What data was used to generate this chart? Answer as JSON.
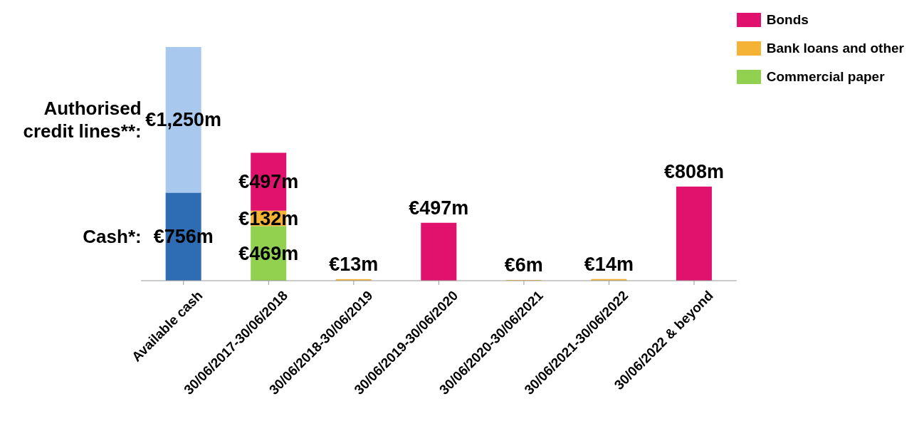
{
  "chart_data": {
    "type": "bar",
    "stacked": true,
    "legend": "top right",
    "categories": [
      "Available cash",
      "30/06/2017-30/06/2018",
      "30/06/2018-30/06/2019",
      "30/06/2019-30/06/2020",
      "30/06/2020-30/06/2021",
      "30/06/2021-30/06/2022",
      "30/06/2022 & beyond"
    ],
    "series": [
      {
        "name": "Cash*:",
        "color": "#2e6db4",
        "values": [
          756,
          null,
          null,
          null,
          null,
          null,
          null
        ],
        "value_labels": [
          "€756m",
          null,
          null,
          null,
          null,
          null,
          null
        ]
      },
      {
        "name": "Authorised credit lines**:",
        "color": "#a9c8ee",
        "values": [
          1250,
          null,
          null,
          null,
          null,
          null,
          null
        ],
        "value_labels": [
          "€1,250m",
          null,
          null,
          null,
          null,
          null,
          null
        ]
      },
      {
        "name": "Commercial paper",
        "color": "#92d050",
        "values": [
          null,
          469,
          null,
          null,
          null,
          null,
          null
        ],
        "value_labels": [
          null,
          "€469m",
          null,
          null,
          null,
          null,
          null
        ]
      },
      {
        "name": "Bank loans and other",
        "color": "#f5b335",
        "values": [
          null,
          132,
          13,
          null,
          6,
          14,
          null
        ],
        "value_labels": [
          null,
          "€132m",
          "€13m",
          null,
          "€6m",
          "€14m",
          null
        ]
      },
      {
        "name": "Bonds",
        "color": "#e0126e",
        "values": [
          null,
          497,
          null,
          497,
          null,
          null,
          808
        ],
        "value_labels": [
          null,
          "€497m",
          null,
          "€497m",
          null,
          null,
          "€808m"
        ]
      }
    ]
  }
}
